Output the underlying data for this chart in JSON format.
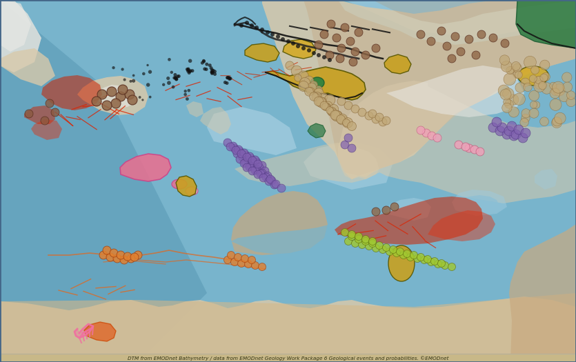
{
  "subtitle": "DTM from EMODnet Bathymetry / data from EMODnet Geology Work Package 6 Geological events and probabilities. ©EMODnet",
  "fig_width": 8.35,
  "fig_height": 5.25,
  "dpi": 100,
  "colors": {
    "deep_ocean": "#5a9ab5",
    "ocean": "#78b4cc",
    "shallow_ocean": "#9ecade",
    "very_shallow": "#b8d8e8",
    "land_green": "#c8bfa0",
    "land_brown": "#c4a882",
    "land_beige": "#d8c9aa",
    "land_dark": "#b09878",
    "mountain": "#a08060",
    "snow": "#e8e8e4",
    "greenland_snow": "#dce0dc",
    "yellow_geo": "#c8a020",
    "yellow_geo2": "#d4aa28",
    "red_vol": "#cc2200",
    "red_vol2": "#e03010",
    "orange_fault": "#e06020",
    "pink_geo": "#e87090",
    "green_geo": "#3a9a50",
    "green_marker": "#a0c830",
    "purple_marker": "#8060b0",
    "tan_marker": "#c0a878",
    "brown_marker": "#906848",
    "orange_marker": "#e08030",
    "pink_marker": "#f0a0b8"
  }
}
